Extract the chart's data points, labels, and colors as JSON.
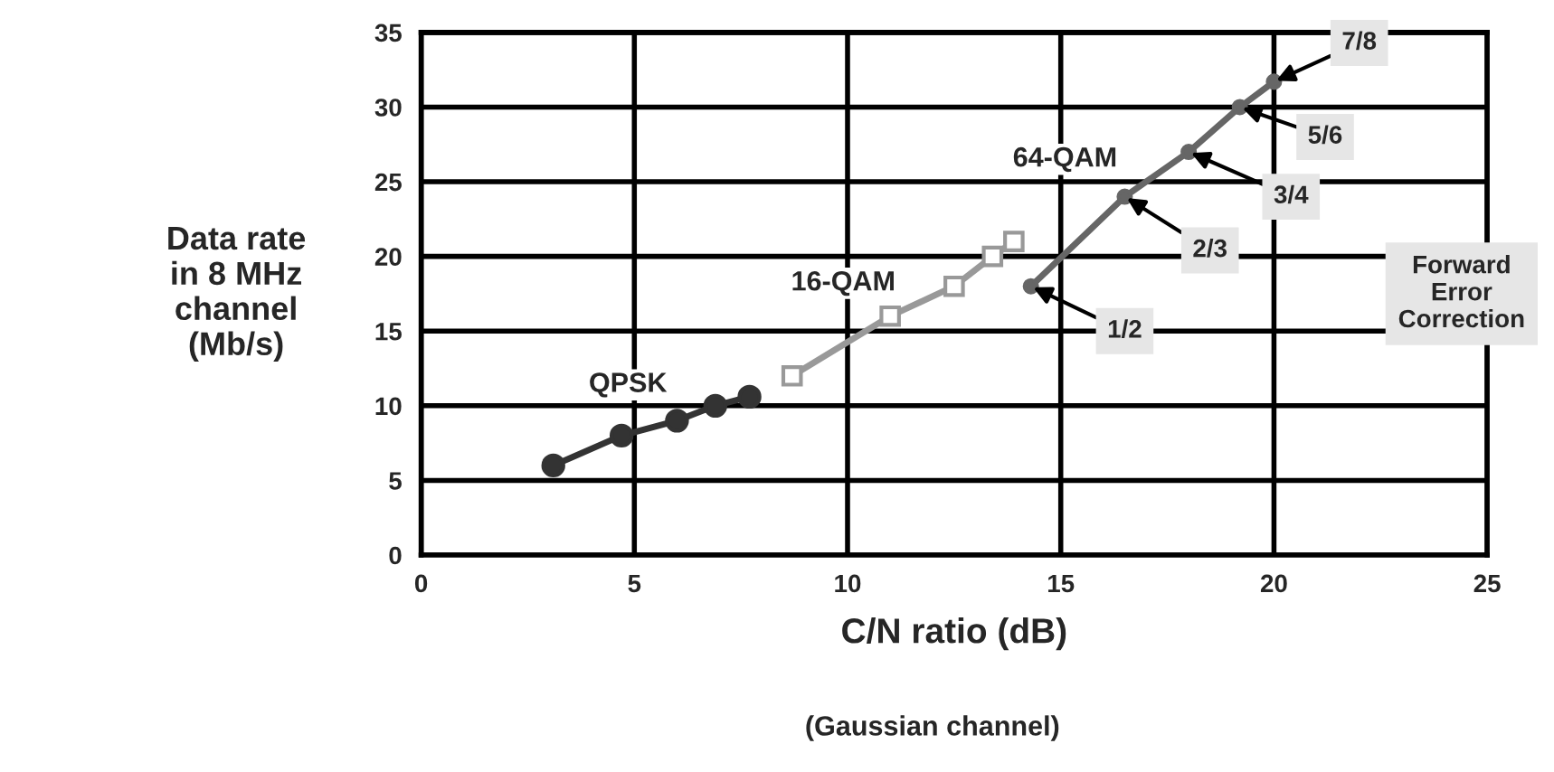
{
  "chart_data": {
    "type": "line",
    "xlabel": "C/N ratio (dB)",
    "ylabel": "Data rate\nin 8 MHz\nchannel\n(Mb/s)",
    "xlim": [
      0,
      25
    ],
    "xticks": [
      0,
      5,
      10,
      15,
      20,
      25
    ],
    "ylim": [
      0,
      35
    ],
    "yticks": [
      0,
      5,
      10,
      15,
      20,
      25,
      30,
      35
    ],
    "grid": true,
    "legend": false,
    "line_style": "solid",
    "series": [
      {
        "name": "QPSK",
        "color": "#333333",
        "marker": "circle",
        "x": [
          3.1,
          4.7,
          6.0,
          6.9,
          7.7
        ],
        "values": [
          6,
          8,
          9,
          10,
          10.6
        ]
      },
      {
        "name": "16-QAM",
        "color": "#999999",
        "marker": "square",
        "x": [
          8.7,
          11.0,
          12.5,
          13.4,
          13.9
        ],
        "values": [
          12,
          16,
          18,
          20,
          21
        ]
      },
      {
        "name": "64-QAM",
        "color": "#666666",
        "marker": "circle",
        "x": [
          14.3,
          16.5,
          18.0,
          19.2,
          20.0
        ],
        "values": [
          18,
          24,
          27,
          30,
          31.7
        ]
      }
    ],
    "annotations": [
      {
        "text": "1/2",
        "x": 14.3,
        "y": 18
      },
      {
        "text": "2/3",
        "x": 16.5,
        "y": 24
      },
      {
        "text": "3/4",
        "x": 18.0,
        "y": 27
      },
      {
        "text": "5/6",
        "x": 19.2,
        "y": 30
      },
      {
        "text": "7/8",
        "x": 20.0,
        "y": 31.7
      },
      "Forward\nError\nCorrection",
      "(Gaussian channel)"
    ]
  }
}
